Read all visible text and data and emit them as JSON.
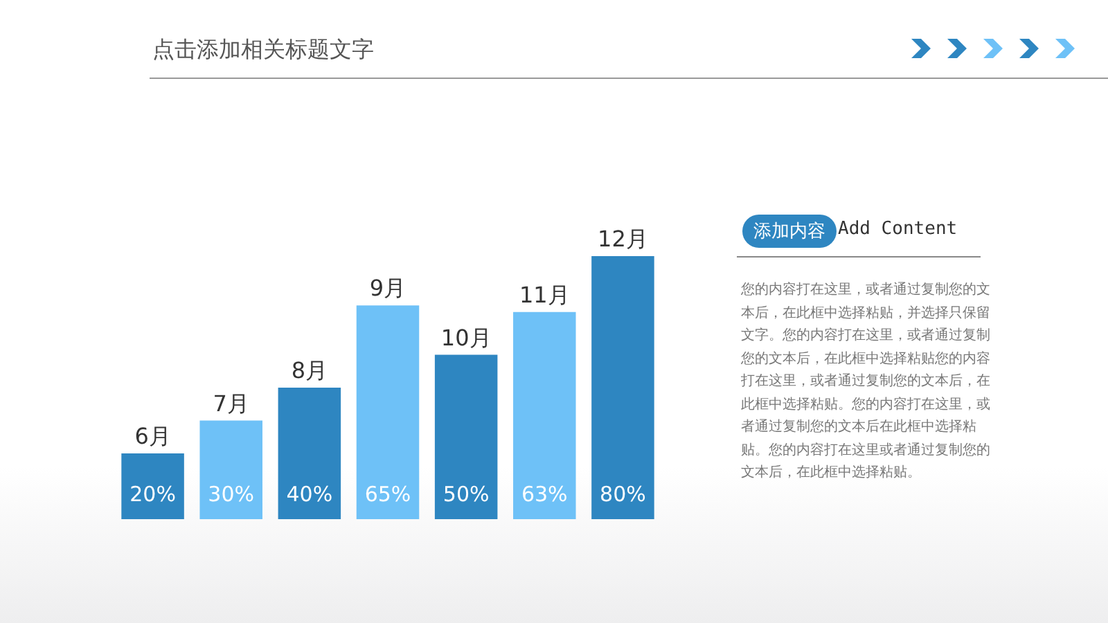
{
  "chart_data": {
    "type": "bar",
    "title": "点击添加相关标题文字",
    "categories": [
      "6月",
      "7月",
      "8月",
      "9月",
      "10月",
      "11月",
      "12月"
    ],
    "values": [
      20,
      30,
      40,
      65,
      50,
      63,
      80
    ],
    "value_labels": [
      "20%",
      "30%",
      "40%",
      "65%",
      "50%",
      "63%",
      "80%"
    ],
    "colors": [
      "#2e86c1",
      "#6ec1f7",
      "#2e86c1",
      "#6ec1f7",
      "#2e86c1",
      "#6ec1f7",
      "#2e86c1"
    ],
    "annotations": [
      "添加内容",
      "Add Content",
      "您的内容打在这里，或者通过复制您的文本后，在此框中选择粘贴，并选择只保留文字。您的内容打在这里，或者通过复制您的文本后，在此框中选择粘贴您的内容打在这里，或者通过复制您的文本后，在此框中选择粘贴。您的内容打在这里，或者通过复制您的文本后在此框中选择粘贴。您的内容打在这里或者通过复制您的文本后，在此框中选择粘贴。"
    ]
  }
}
